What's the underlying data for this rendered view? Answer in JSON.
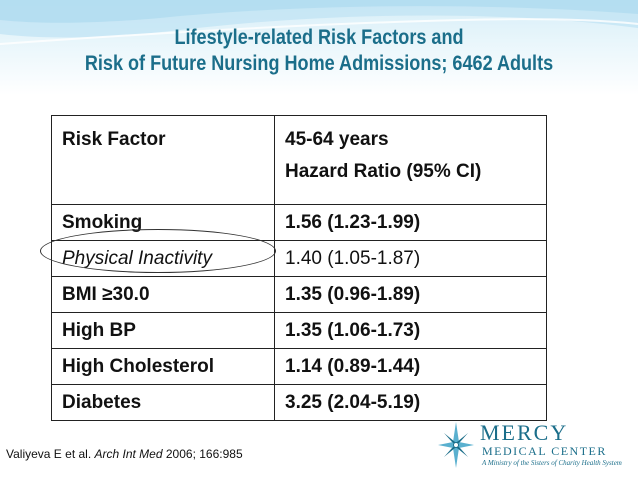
{
  "slide": {
    "title_line1": "Lifestyle-related Risk Factors and",
    "title_line2": "Risk of Future Nursing Home Admissions; 6462 Adults",
    "colors": {
      "title": "#1b6e8a",
      "header_bg": "#d6eef8",
      "logo": "#1b6e8a"
    }
  },
  "table": {
    "header": {
      "col1": "Risk Factor",
      "col2_line1": "45-64 years",
      "col2_line2": "Hazard Ratio (95% CI)"
    },
    "rows": [
      {
        "factor": "Smoking",
        "hr": "1.56 (1.23-1.99)"
      },
      {
        "factor": "Physical Inactivity",
        "hr": "1.40 (1.05-1.87)"
      },
      {
        "factor": "BMI ≥30.0",
        "hr": "1.35 (0.96-1.89)"
      },
      {
        "factor": "High BP",
        "hr": "1.35 (1.06-1.73)"
      },
      {
        "factor": "High Cholesterol",
        "hr": "1.14 (0.89-1.44)"
      },
      {
        "factor": "Diabetes",
        "hr": "3.25 (2.04-5.19)"
      }
    ]
  },
  "citation": {
    "authors": "Valiyeva E et al.",
    "journal": "Arch Int Med",
    "details": "2006; 166:985"
  },
  "logo": {
    "name": "MERCY",
    "subtitle": "MEDICAL CENTER",
    "tagline": "A Ministry of the Sisters of Charity Health System",
    "icon": "compass-star-icon"
  }
}
